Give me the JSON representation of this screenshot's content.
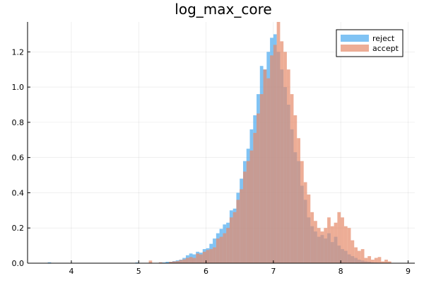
{
  "chart_data": {
    "type": "histogram",
    "title": "log_max_core",
    "xlabel": "",
    "ylabel": "",
    "xlim": [
      3.35,
      9.1
    ],
    "ylim": [
      0,
      1.37
    ],
    "xticks": [
      4,
      5,
      6,
      7,
      8,
      9
    ],
    "yticks": [
      0.0,
      0.2,
      0.4,
      0.6,
      0.8,
      1.0,
      1.2
    ],
    "ytick_labels": [
      "0.0",
      "0.2",
      "0.4",
      "0.6",
      "0.8",
      "1.0",
      "1.2"
    ],
    "grid": true,
    "legend_position": "top-right",
    "bin_width": 0.05,
    "series": [
      {
        "name": "reject",
        "color": "#4aaaf0",
        "opacity": 0.7,
        "bins": [
          [
            3.65,
            0.005
          ],
          [
            4.95,
            0.004
          ],
          [
            5.3,
            0.004
          ],
          [
            5.35,
            0.004
          ],
          [
            5.4,
            0.008
          ],
          [
            5.45,
            0.008
          ],
          [
            5.5,
            0.012
          ],
          [
            5.55,
            0.016
          ],
          [
            5.6,
            0.02
          ],
          [
            5.65,
            0.03
          ],
          [
            5.7,
            0.045
          ],
          [
            5.75,
            0.055
          ],
          [
            5.8,
            0.05
          ],
          [
            5.85,
            0.065
          ],
          [
            5.9,
            0.06
          ],
          [
            5.95,
            0.08
          ],
          [
            6.0,
            0.085
          ],
          [
            6.05,
            0.11
          ],
          [
            6.1,
            0.14
          ],
          [
            6.15,
            0.17
          ],
          [
            6.2,
            0.195
          ],
          [
            6.25,
            0.22
          ],
          [
            6.3,
            0.23
          ],
          [
            6.35,
            0.3
          ],
          [
            6.4,
            0.31
          ],
          [
            6.45,
            0.4
          ],
          [
            6.5,
            0.48
          ],
          [
            6.55,
            0.58
          ],
          [
            6.6,
            0.65
          ],
          [
            6.65,
            0.76
          ],
          [
            6.7,
            0.84
          ],
          [
            6.75,
            0.96
          ],
          [
            6.8,
            1.12
          ],
          [
            6.85,
            1.1
          ],
          [
            6.9,
            1.2
          ],
          [
            6.95,
            1.28
          ],
          [
            7.0,
            1.3
          ],
          [
            7.05,
            1.2
          ],
          [
            7.1,
            1.1
          ],
          [
            7.15,
            1.0
          ],
          [
            7.2,
            0.9
          ],
          [
            7.25,
            0.76
          ],
          [
            7.3,
            0.63
          ],
          [
            7.35,
            0.58
          ],
          [
            7.4,
            0.44
          ],
          [
            7.45,
            0.36
          ],
          [
            7.5,
            0.26
          ],
          [
            7.55,
            0.21
          ],
          [
            7.6,
            0.18
          ],
          [
            7.65,
            0.15
          ],
          [
            7.7,
            0.16
          ],
          [
            7.75,
            0.14
          ],
          [
            7.8,
            0.17
          ],
          [
            7.85,
            0.12
          ],
          [
            7.9,
            0.15
          ],
          [
            7.95,
            0.1
          ],
          [
            8.0,
            0.08
          ],
          [
            8.05,
            0.07
          ],
          [
            8.1,
            0.05
          ],
          [
            8.15,
            0.04
          ],
          [
            8.2,
            0.03
          ],
          [
            8.25,
            0.02
          ],
          [
            8.3,
            0.015
          ],
          [
            8.35,
            0.01
          ],
          [
            8.4,
            0.008
          ],
          [
            8.45,
            0.005
          ],
          [
            8.5,
            0.004
          ],
          [
            8.55,
            0.003
          ],
          [
            8.6,
            0.002
          ]
        ]
      },
      {
        "name": "accept",
        "color": "#e68a69",
        "opacity": 0.7,
        "bins": [
          [
            5.15,
            0.015
          ],
          [
            5.3,
            0.005
          ],
          [
            5.45,
            0.008
          ],
          [
            5.5,
            0.01
          ],
          [
            5.55,
            0.012
          ],
          [
            5.6,
            0.018
          ],
          [
            5.65,
            0.022
          ],
          [
            5.7,
            0.03
          ],
          [
            5.75,
            0.035
          ],
          [
            5.8,
            0.03
          ],
          [
            5.85,
            0.055
          ],
          [
            5.9,
            0.05
          ],
          [
            5.95,
            0.065
          ],
          [
            6.0,
            0.075
          ],
          [
            6.05,
            0.08
          ],
          [
            6.1,
            0.09
          ],
          [
            6.15,
            0.14
          ],
          [
            6.2,
            0.15
          ],
          [
            6.25,
            0.17
          ],
          [
            6.3,
            0.2
          ],
          [
            6.35,
            0.26
          ],
          [
            6.4,
            0.29
          ],
          [
            6.45,
            0.36
          ],
          [
            6.5,
            0.42
          ],
          [
            6.55,
            0.52
          ],
          [
            6.6,
            0.58
          ],
          [
            6.65,
            0.64
          ],
          [
            6.7,
            0.74
          ],
          [
            6.75,
            0.85
          ],
          [
            6.8,
            0.96
          ],
          [
            6.85,
            1.1
          ],
          [
            6.9,
            1.05
          ],
          [
            6.95,
            1.18
          ],
          [
            7.0,
            1.24
          ],
          [
            7.05,
            1.37
          ],
          [
            7.1,
            1.26
          ],
          [
            7.15,
            1.2
          ],
          [
            7.2,
            1.1
          ],
          [
            7.25,
            0.96
          ],
          [
            7.3,
            0.84
          ],
          [
            7.35,
            0.71
          ],
          [
            7.4,
            0.58
          ],
          [
            7.45,
            0.46
          ],
          [
            7.5,
            0.39
          ],
          [
            7.55,
            0.29
          ],
          [
            7.6,
            0.24
          ],
          [
            7.65,
            0.2
          ],
          [
            7.7,
            0.18
          ],
          [
            7.75,
            0.2
          ],
          [
            7.8,
            0.26
          ],
          [
            7.85,
            0.21
          ],
          [
            7.9,
            0.23
          ],
          [
            7.95,
            0.29
          ],
          [
            8.0,
            0.26
          ],
          [
            8.05,
            0.21
          ],
          [
            8.1,
            0.2
          ],
          [
            8.15,
            0.13
          ],
          [
            8.2,
            0.09
          ],
          [
            8.25,
            0.07
          ],
          [
            8.3,
            0.08
          ],
          [
            8.35,
            0.03
          ],
          [
            8.4,
            0.04
          ],
          [
            8.45,
            0.02
          ],
          [
            8.5,
            0.03
          ],
          [
            8.55,
            0.035
          ],
          [
            8.6,
            0.01
          ],
          [
            8.65,
            0.02
          ],
          [
            8.7,
            0.01
          ]
        ]
      }
    ]
  }
}
